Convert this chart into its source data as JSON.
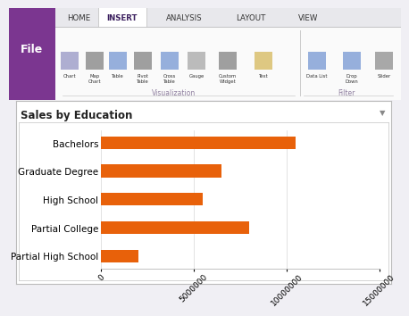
{
  "title": "Sales by Education",
  "categories": [
    "Bachelors",
    "Graduate Degree",
    "High School",
    "Partial College",
    "Partial High School"
  ],
  "values": [
    10500000,
    6500000,
    5500000,
    8000000,
    2000000
  ],
  "bar_color": "#E8610A",
  "xlim": [
    0,
    15000000
  ],
  "xticks": [
    0,
    5000000,
    10000000,
    15000000
  ],
  "fig_bg": "#F0EFF4",
  "ribbon_bg": "#F0EFF4",
  "chart_panel_bg": "#FFFFFF",
  "chart_inner_bg": "#FFFFFF",
  "grid_color": "#D8D8D8",
  "panel_border": "#BBBBBB",
  "file_tab_color": "#7B3690",
  "tab_line_color": "#C8C8C8",
  "title_fontsize": 8.5,
  "axis_fontsize": 6.5,
  "ylabel_fontsize": 7.5,
  "tabs": [
    "HOME",
    "INSERT",
    "ANALYSIS",
    "LAYOUT",
    "VIEW"
  ],
  "icon_row": [
    "Chart",
    "Map\nChart",
    "Table",
    "Pivot\nTable",
    "Cross\nTable",
    "Gauge",
    "Custom\nWidget",
    "Text",
    "Data List",
    "Drop\nDown",
    "Slider"
  ],
  "viz_label": "Visualization",
  "filter_label": "Filter"
}
